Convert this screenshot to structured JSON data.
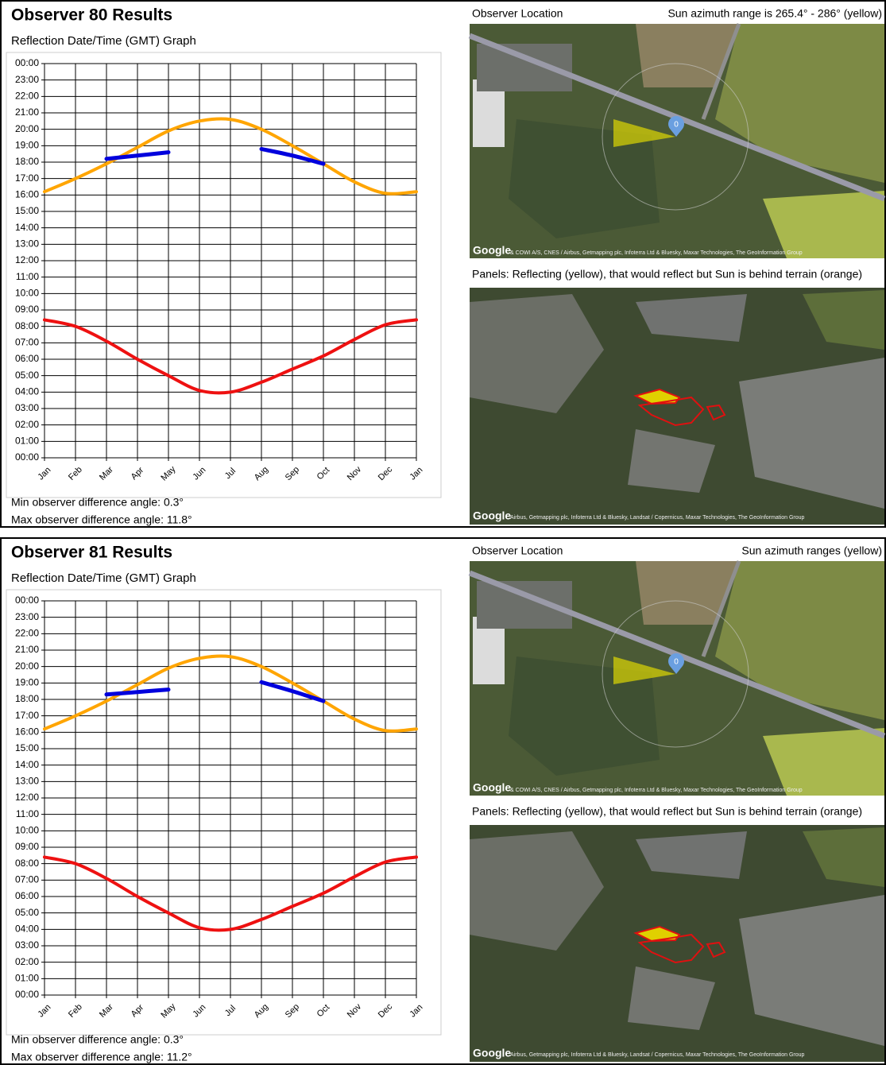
{
  "chart_data": [
    {
      "type": "line",
      "title": "Reflection Date/Time (GMT) Graph",
      "categories": [
        "Jan",
        "Feb",
        "Mar",
        "Apr",
        "May",
        "Jun",
        "Jul",
        "Aug",
        "Sep",
        "Oct",
        "Nov",
        "Dec",
        "Jan"
      ],
      "ylim": [
        0,
        24
      ],
      "yticks": [
        {
          "value": 0,
          "label": "00:00"
        },
        {
          "value": 1,
          "label": "01:00"
        },
        {
          "value": 2,
          "label": "02:00"
        },
        {
          "value": 3,
          "label": "03:00"
        },
        {
          "value": 4,
          "label": "04:00"
        },
        {
          "value": 5,
          "label": "05:00"
        },
        {
          "value": 6,
          "label": "06:00"
        },
        {
          "value": 7,
          "label": "07:00"
        },
        {
          "value": 8,
          "label": "08:00"
        },
        {
          "value": 9,
          "label": "09:00"
        },
        {
          "value": 10,
          "label": "10:00"
        },
        {
          "value": 11,
          "label": "11:00"
        },
        {
          "value": 12,
          "label": "12:00"
        },
        {
          "value": 13,
          "label": "13:00"
        },
        {
          "value": 14,
          "label": "14:00"
        },
        {
          "value": 15,
          "label": "15:00"
        },
        {
          "value": 16,
          "label": "16:00"
        },
        {
          "value": 17,
          "label": "17:00"
        },
        {
          "value": 18,
          "label": "18:00"
        },
        {
          "value": 19,
          "label": "19:00"
        },
        {
          "value": 20,
          "label": "20:00"
        },
        {
          "value": 21,
          "label": "21:00"
        },
        {
          "value": 22,
          "label": "22:00"
        },
        {
          "value": 23,
          "label": "23:00"
        },
        {
          "value": 24,
          "label": "00:00"
        }
      ],
      "grid": true,
      "series": [
        {
          "color": "#ffa500",
          "values": [
            16.2,
            17.0,
            17.9,
            18.9,
            19.9,
            20.5,
            20.6,
            20.0,
            19.0,
            17.9,
            16.8,
            16.1,
            16.2
          ]
        },
        {
          "color": "#ee1111",
          "values": [
            8.4,
            8.0,
            7.1,
            6.0,
            5.0,
            4.1,
            4.0,
            4.6,
            5.4,
            6.2,
            7.2,
            8.1,
            8.4
          ]
        },
        {
          "color": "#0000dd",
          "values": [
            null,
            null,
            18.2,
            18.4,
            18.6,
            null,
            null,
            18.8,
            18.4,
            17.9,
            null,
            null,
            null
          ]
        }
      ]
    },
    {
      "type": "line",
      "title": "Reflection Date/Time (GMT) Graph",
      "categories": [
        "Jan",
        "Feb",
        "Mar",
        "Apr",
        "May",
        "Jun",
        "Jul",
        "Aug",
        "Sep",
        "Oct",
        "Nov",
        "Dec",
        "Jan"
      ],
      "ylim": [
        0,
        24
      ],
      "yticks": [
        {
          "value": 0,
          "label": "00:00"
        },
        {
          "value": 1,
          "label": "01:00"
        },
        {
          "value": 2,
          "label": "02:00"
        },
        {
          "value": 3,
          "label": "03:00"
        },
        {
          "value": 4,
          "label": "04:00"
        },
        {
          "value": 5,
          "label": "05:00"
        },
        {
          "value": 6,
          "label": "06:00"
        },
        {
          "value": 7,
          "label": "07:00"
        },
        {
          "value": 8,
          "label": "08:00"
        },
        {
          "value": 9,
          "label": "09:00"
        },
        {
          "value": 10,
          "label": "10:00"
        },
        {
          "value": 11,
          "label": "11:00"
        },
        {
          "value": 12,
          "label": "12:00"
        },
        {
          "value": 13,
          "label": "13:00"
        },
        {
          "value": 14,
          "label": "14:00"
        },
        {
          "value": 15,
          "label": "15:00"
        },
        {
          "value": 16,
          "label": "16:00"
        },
        {
          "value": 17,
          "label": "17:00"
        },
        {
          "value": 18,
          "label": "18:00"
        },
        {
          "value": 19,
          "label": "19:00"
        },
        {
          "value": 20,
          "label": "20:00"
        },
        {
          "value": 21,
          "label": "21:00"
        },
        {
          "value": 22,
          "label": "22:00"
        },
        {
          "value": 23,
          "label": "23:00"
        },
        {
          "value": 24,
          "label": "00:00"
        }
      ],
      "grid": true,
      "series": [
        {
          "color": "#ffa500",
          "values": [
            16.2,
            17.0,
            17.9,
            18.9,
            19.9,
            20.5,
            20.6,
            20.0,
            19.0,
            17.9,
            16.8,
            16.1,
            16.2
          ]
        },
        {
          "color": "#ee1111",
          "values": [
            8.4,
            8.0,
            7.1,
            6.0,
            5.0,
            4.1,
            4.0,
            4.6,
            5.4,
            6.2,
            7.2,
            8.1,
            8.4
          ]
        },
        {
          "color": "#0000dd",
          "values": [
            null,
            null,
            18.3,
            18.45,
            18.6,
            null,
            null,
            19.05,
            18.5,
            17.9,
            null,
            null,
            null
          ]
        }
      ]
    }
  ],
  "panels": [
    {
      "title": "Observer 80 Results",
      "min_angle": "Min observer difference angle: 0.3°",
      "max_angle": "Max observer difference angle: 11.8°",
      "location_label": "Observer Location",
      "azimuth": "Sun azimuth range is 265.4° - 286° (yellow)",
      "panels_caption": "Panels: Reflecting (yellow), that would reflect but Sun is behind terrain (orange)",
      "marker": "0",
      "logo": "Google",
      "map1_credit": "& COWI A/S, CNES / Airbus, Getmapping plc, Infoterra Ltd & Bluesky, Maxar Technologies, The GeoInformation Group",
      "map2_credit": "Airbus, Getmapping plc, Infoterra Ltd & Bluesky, Landsat / Copernicus, Maxar Technologies, The GeoInformation Group"
    },
    {
      "title": "Observer 81 Results",
      "min_angle": "Min observer difference angle: 0.3°",
      "max_angle": "Max observer difference angle: 11.2°",
      "location_label": "Observer Location",
      "azimuth": "Sun azimuth ranges (yellow)",
      "panels_caption": "Panels: Reflecting (yellow), that would reflect but Sun is behind terrain (orange)",
      "marker": "0",
      "logo": "Google",
      "map1_credit": "& COWI A/S, CNES / Airbus, Getmapping plc, Infoterra Ltd & Bluesky, Maxar Technologies, The GeoInformation Group",
      "map2_credit": "Airbus, Getmapping plc, Infoterra Ltd & Bluesky, Landsat / Copernicus, Maxar Technologies, The GeoInformation Group"
    }
  ]
}
